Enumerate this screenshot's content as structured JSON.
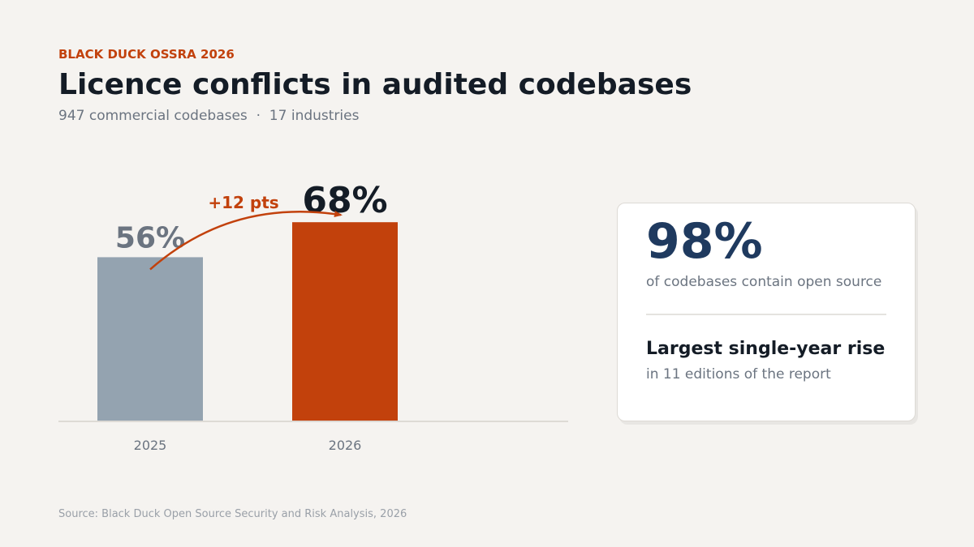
{
  "header": {
    "eyebrow": "BLACK DUCK OSSRA 2026",
    "title": "Licence conflicts in audited codebases",
    "subtitle": "947 commercial codebases  ·  17 industries"
  },
  "chart_data": {
    "type": "bar",
    "categories": [
      "2025",
      "2026"
    ],
    "values": [
      56,
      68
    ],
    "value_labels": [
      "56%",
      "68%"
    ],
    "ylim": [
      0,
      100
    ],
    "grid": false,
    "annotation": "+12 pts",
    "colors": {
      "bar_prior": "#94a3b0",
      "bar_current": "#c2410c",
      "label_prior": "#6b7480",
      "label_current": "#141c26",
      "annotation": "#c2410c",
      "axis": "#dddad5",
      "tick": "#6b7480"
    }
  },
  "card": {
    "stat": "98%",
    "stat_desc": "of codebases contain open source",
    "headline": "Largest single-year rise",
    "note": "in 11 editions of the report"
  },
  "source": "Source: Black Duck Open Source Security and Risk Analysis, 2026"
}
